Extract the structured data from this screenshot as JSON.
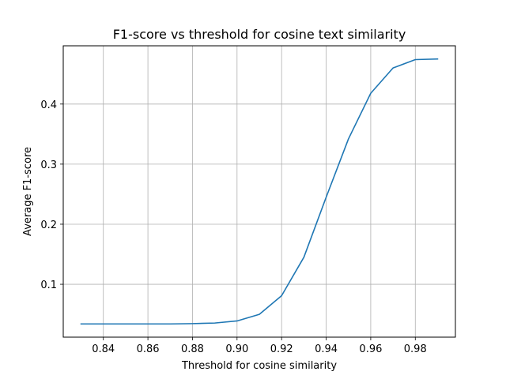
{
  "chart_data": {
    "type": "line",
    "title": "F1-score vs threshold for cosine text similarity",
    "xlabel": "Threshold for cosine similarity",
    "ylabel": "Average F1-score",
    "xlim": [
      0.822,
      0.998
    ],
    "ylim": [
      0.012,
      0.497
    ],
    "grid": true,
    "x_ticks": [
      0.84,
      0.86,
      0.88,
      0.9,
      0.92,
      0.94,
      0.96,
      0.98
    ],
    "x_tick_labels": [
      "0.84",
      "0.86",
      "0.88",
      "0.90",
      "0.92",
      "0.94",
      "0.96",
      "0.98"
    ],
    "y_ticks": [
      0.1,
      0.2,
      0.3,
      0.4
    ],
    "y_tick_labels": [
      "0.1",
      "0.2",
      "0.3",
      "0.4"
    ],
    "series": [
      {
        "color": "#1f77b4",
        "x": [
          0.83,
          0.84,
          0.85,
          0.86,
          0.87,
          0.88,
          0.89,
          0.9,
          0.91,
          0.92,
          0.93,
          0.94,
          0.95,
          0.96,
          0.97,
          0.98,
          0.99
        ],
        "y": [
          0.034,
          0.034,
          0.034,
          0.034,
          0.034,
          0.0345,
          0.0355,
          0.039,
          0.05,
          0.081,
          0.145,
          0.245,
          0.342,
          0.418,
          0.46,
          0.474,
          0.475
        ]
      }
    ]
  }
}
